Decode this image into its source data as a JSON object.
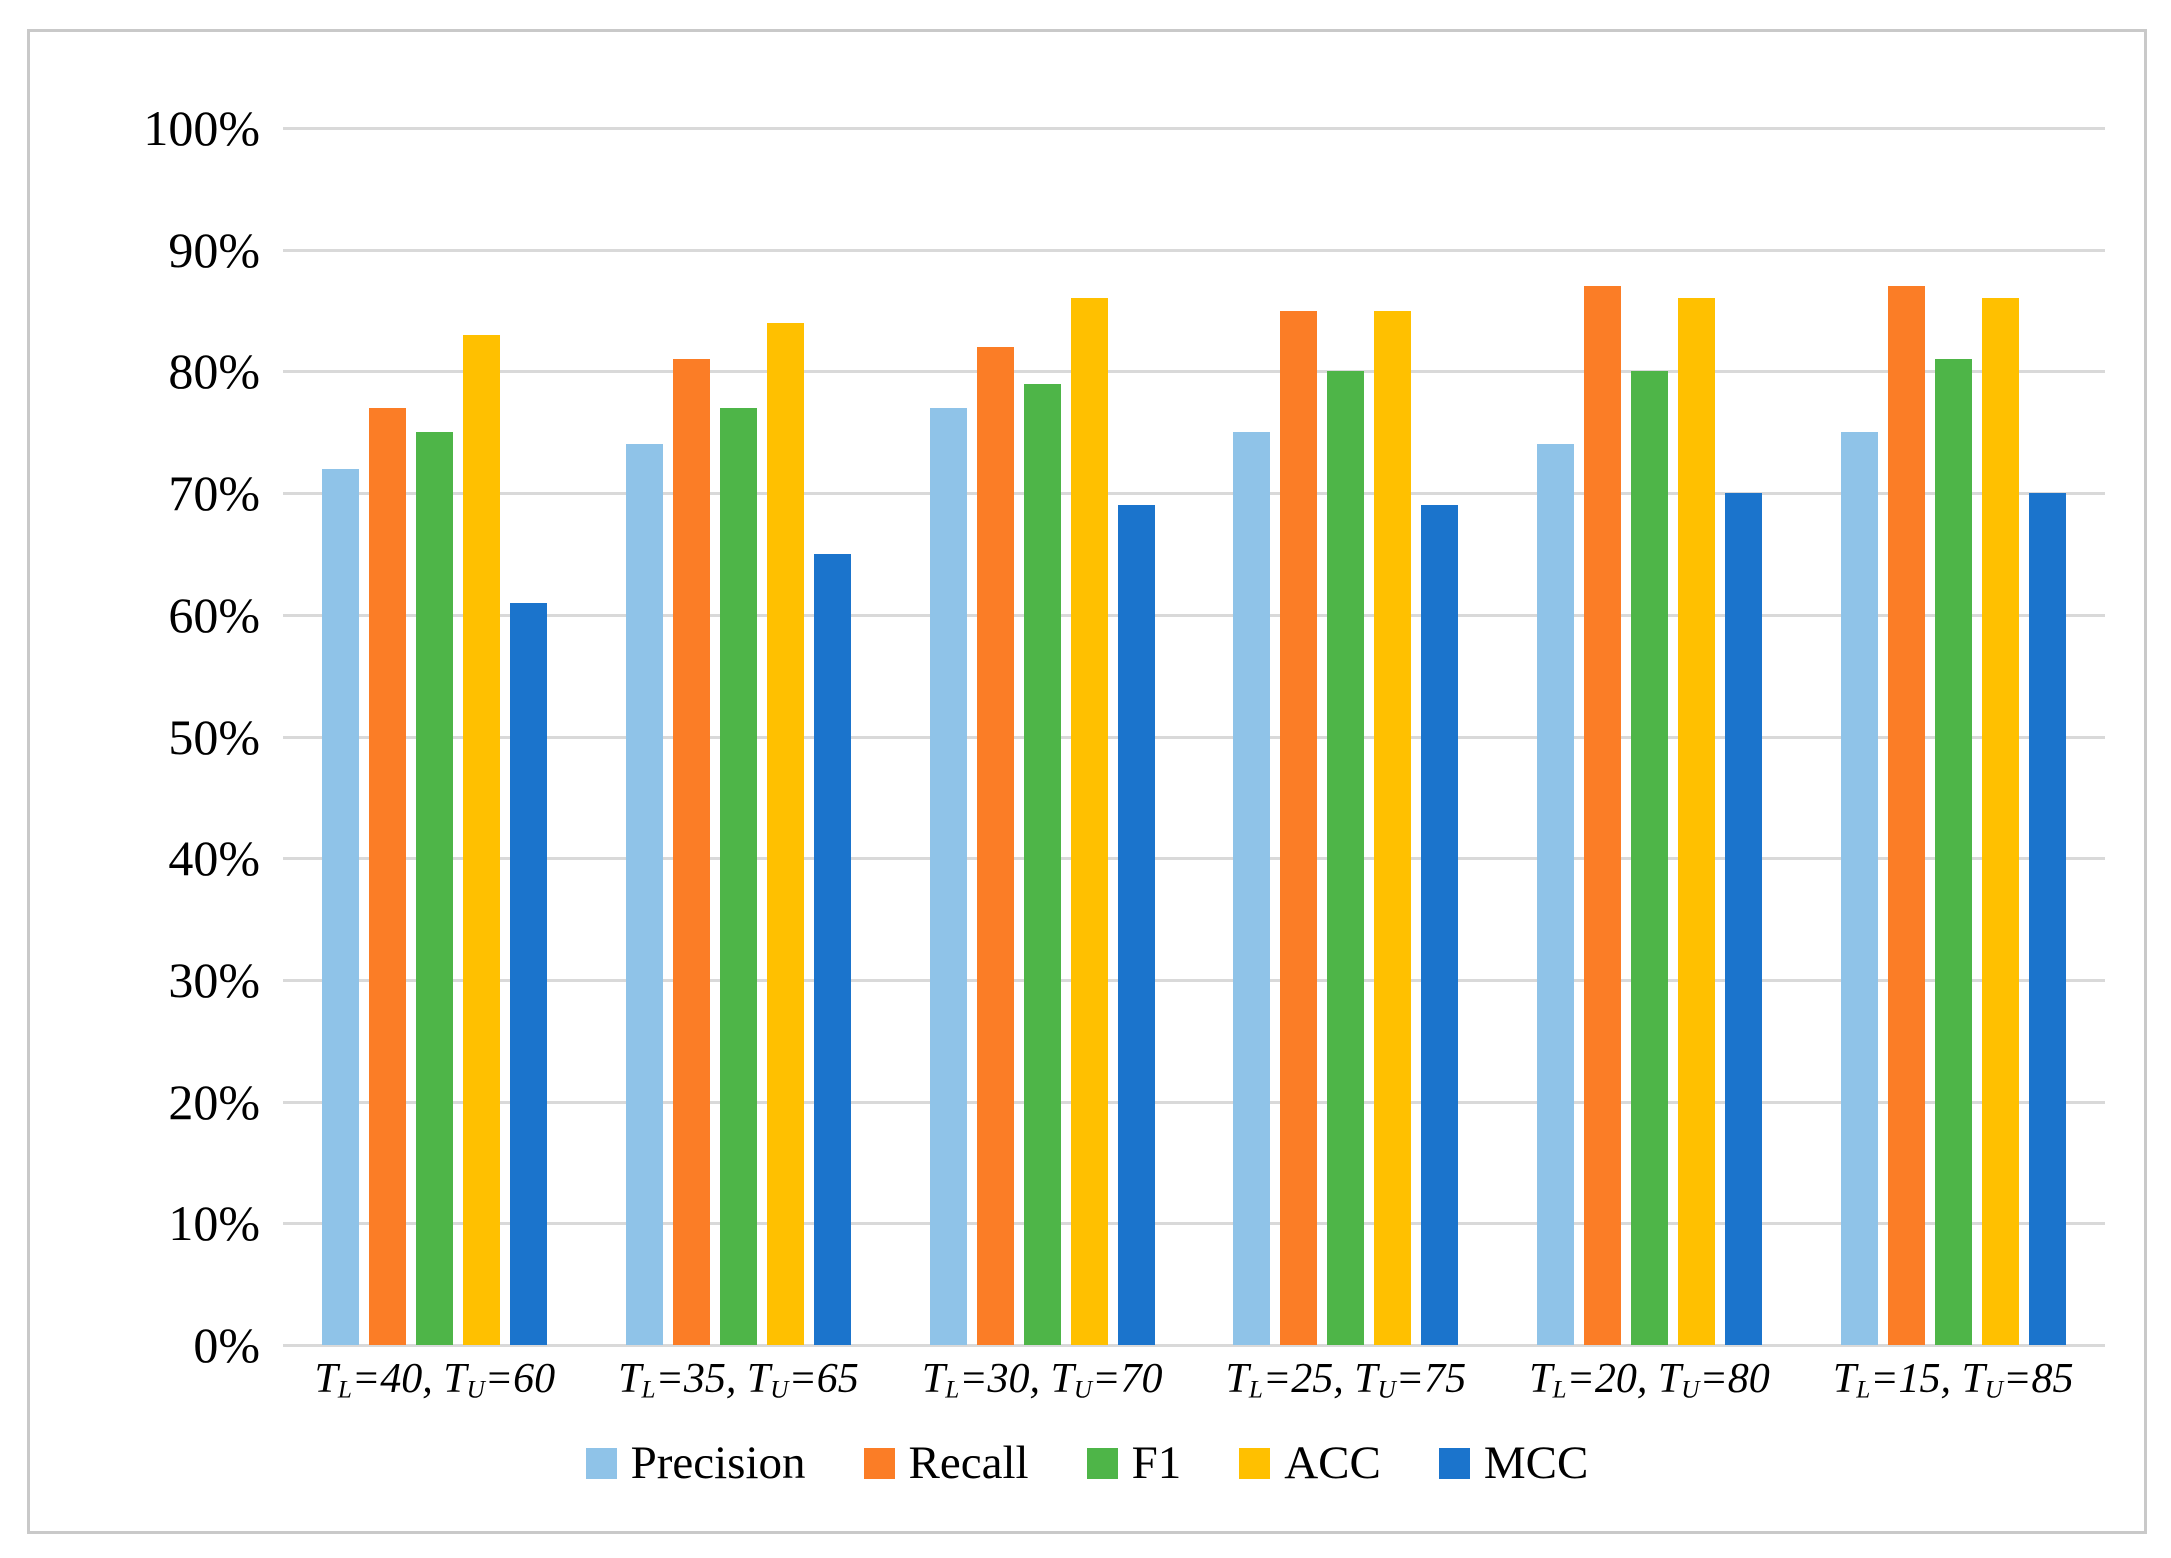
{
  "figure": {
    "background_color": "#FFFFFF",
    "border_color": "#C9C9C9"
  },
  "chart_data": {
    "type": "bar",
    "title": "",
    "xlabel": "",
    "ylabel": "",
    "grid": true,
    "gridline_color": "#D9D9D9",
    "legend_position": "bottom",
    "y_axis": {
      "min": 0,
      "max": 100,
      "step": 10,
      "tick_labels": [
        "0%",
        "10%",
        "20%",
        "30%",
        "40%",
        "50%",
        "60%",
        "70%",
        "80%",
        "90%",
        "100%"
      ]
    },
    "categories": [
      {
        "text": "TL=40, TU=60",
        "parts": [
          [
            "T",
            0
          ],
          [
            "L",
            1
          ],
          [
            "=40, ",
            0
          ],
          [
            "T",
            0
          ],
          [
            "U",
            1
          ],
          [
            "=60",
            0
          ]
        ]
      },
      {
        "text": "TL=35, TU=65",
        "parts": [
          [
            "T",
            0
          ],
          [
            "L",
            1
          ],
          [
            "=35, ",
            0
          ],
          [
            "T",
            0
          ],
          [
            "U",
            1
          ],
          [
            "=65",
            0
          ]
        ]
      },
      {
        "text": "TL=30, TU=70",
        "parts": [
          [
            "T",
            0
          ],
          [
            "L",
            1
          ],
          [
            "=30, ",
            0
          ],
          [
            "T",
            0
          ],
          [
            "U",
            1
          ],
          [
            "=70",
            0
          ]
        ]
      },
      {
        "text": "TL=25, TU=75",
        "parts": [
          [
            "T",
            0
          ],
          [
            "L",
            1
          ],
          [
            "=25, ",
            0
          ],
          [
            "T",
            0
          ],
          [
            "U",
            1
          ],
          [
            "=75",
            0
          ]
        ]
      },
      {
        "text": "TL=20, TU=80",
        "parts": [
          [
            "T",
            0
          ],
          [
            "L",
            1
          ],
          [
            "=20, ",
            0
          ],
          [
            "T",
            0
          ],
          [
            "U",
            1
          ],
          [
            "=80",
            0
          ]
        ]
      },
      {
        "text": "TL=15, TU=85",
        "parts": [
          [
            "T",
            0
          ],
          [
            "L",
            1
          ],
          [
            "=15, ",
            0
          ],
          [
            "T",
            0
          ],
          [
            "U",
            1
          ],
          [
            "=85",
            0
          ]
        ]
      }
    ],
    "series": [
      {
        "name": "Precision",
        "color": "#8FC3E8",
        "values": [
          72,
          74,
          77,
          75,
          74,
          75
        ]
      },
      {
        "name": "Recall",
        "color": "#FB7D26",
        "values": [
          77,
          81,
          82,
          85,
          87,
          87
        ]
      },
      {
        "name": "F1",
        "color": "#4EB548",
        "values": [
          75,
          77,
          79,
          80,
          80,
          81
        ]
      },
      {
        "name": "ACC",
        "color": "#FFC000",
        "values": [
          83,
          84,
          86,
          85,
          86,
          86
        ]
      },
      {
        "name": "MCC",
        "color": "#1B74CC",
        "values": [
          61,
          65,
          69,
          69,
          70,
          70
        ]
      }
    ]
  }
}
